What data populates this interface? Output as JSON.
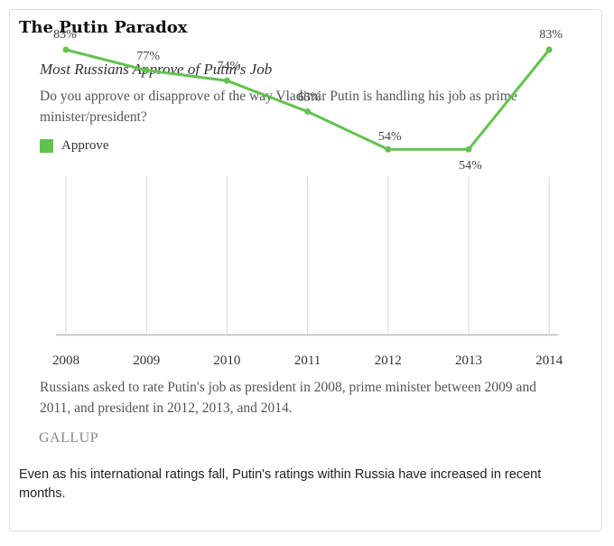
{
  "card": {
    "title": "The Putin Paradox",
    "caption": "Even as his international ratings fall, Putin's ratings within Russia have increased in recent months."
  },
  "colors": {
    "series": "#63c24f",
    "grid": "#d9d9d9",
    "axis": "#bbbbbb"
  },
  "chart_data": {
    "type": "line",
    "title": "Most Russians Approve of Putin's Job",
    "subtitle": "Do you approve or disapprove of the way Vladimir Putin is handling his job as prime minister/president?",
    "x": [
      "2008",
      "2009",
      "2010",
      "2011",
      "2012",
      "2013",
      "2014"
    ],
    "series": [
      {
        "name": "Approve",
        "values": [
          83,
          77,
          74,
          65,
          54,
          54,
          83
        ],
        "labels": [
          "83%",
          "77%",
          "74%",
          "65%",
          "54%",
          "54%",
          "83%"
        ]
      }
    ],
    "ylim": [
      0,
      100
    ],
    "grid": "vertical",
    "legend": "top-left",
    "footnote": "Russians asked to rate Putin's job as president in 2008, prime minister between 2009 and 2011, and president in 2012, 2013, and 2014.",
    "source": "GALLUP"
  }
}
